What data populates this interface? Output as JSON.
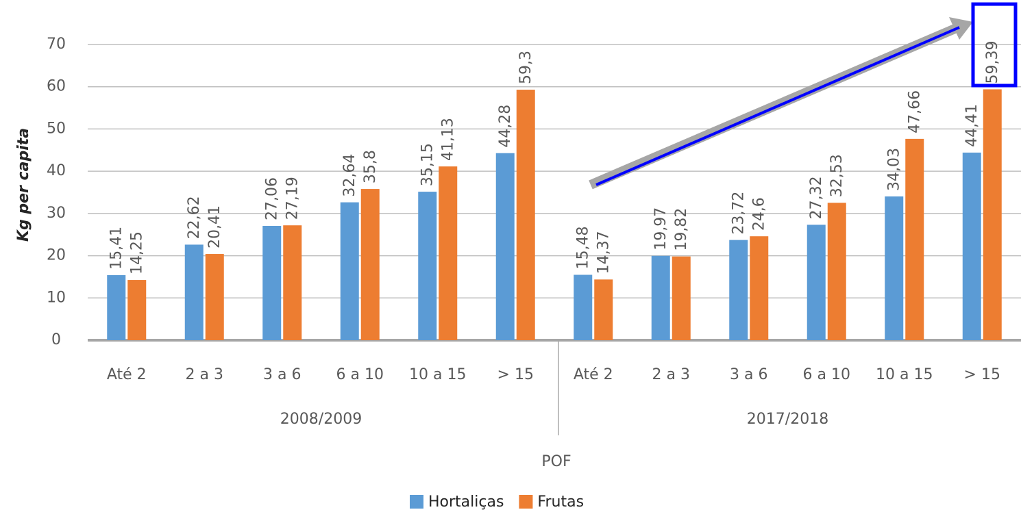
{
  "chart_data": {
    "type": "bar",
    "y_label": "Kg per capita",
    "x_label": "POF",
    "categories": [
      "Até 2",
      "2 a 3",
      "3 a 6",
      "6 a 10",
      "10 a 15",
      "> 15",
      "Até 2",
      "2 a 3",
      "3 a 6",
      "6 a 10",
      "10 a 15",
      "> 15"
    ],
    "group_labels": [
      "2008/2009",
      "2017/2018"
    ],
    "series": [
      {
        "name": "Hortaliças",
        "color": "#5b9bd5",
        "values": [
          15.41,
          22.62,
          27.06,
          32.64,
          35.15,
          44.28,
          15.48,
          19.97,
          23.72,
          27.32,
          34.03,
          44.41
        ],
        "value_labels": [
          "15,41",
          "22,62",
          "27,06",
          "32,64",
          "35,15",
          "44,28",
          "15,48",
          "19,97",
          "23,72",
          "27,32",
          "34,03",
          "44,41"
        ]
      },
      {
        "name": "Frutas",
        "color": "#ed7d31",
        "values": [
          14.25,
          20.41,
          27.19,
          35.8,
          41.13,
          59.3,
          14.37,
          19.82,
          24.6,
          32.53,
          47.66,
          59.39
        ],
        "value_labels": [
          "14,25",
          "20,41",
          "27,19",
          "35,8",
          "41,13",
          "59,3",
          "14,37",
          "19,82",
          "24,6",
          "32,53",
          "47,66",
          "59,39"
        ]
      }
    ],
    "ylim": [
      0,
      70
    ],
    "yticks": [
      0,
      10,
      20,
      30,
      40,
      50,
      60,
      70
    ],
    "grid": true,
    "legend": "bottom"
  }
}
